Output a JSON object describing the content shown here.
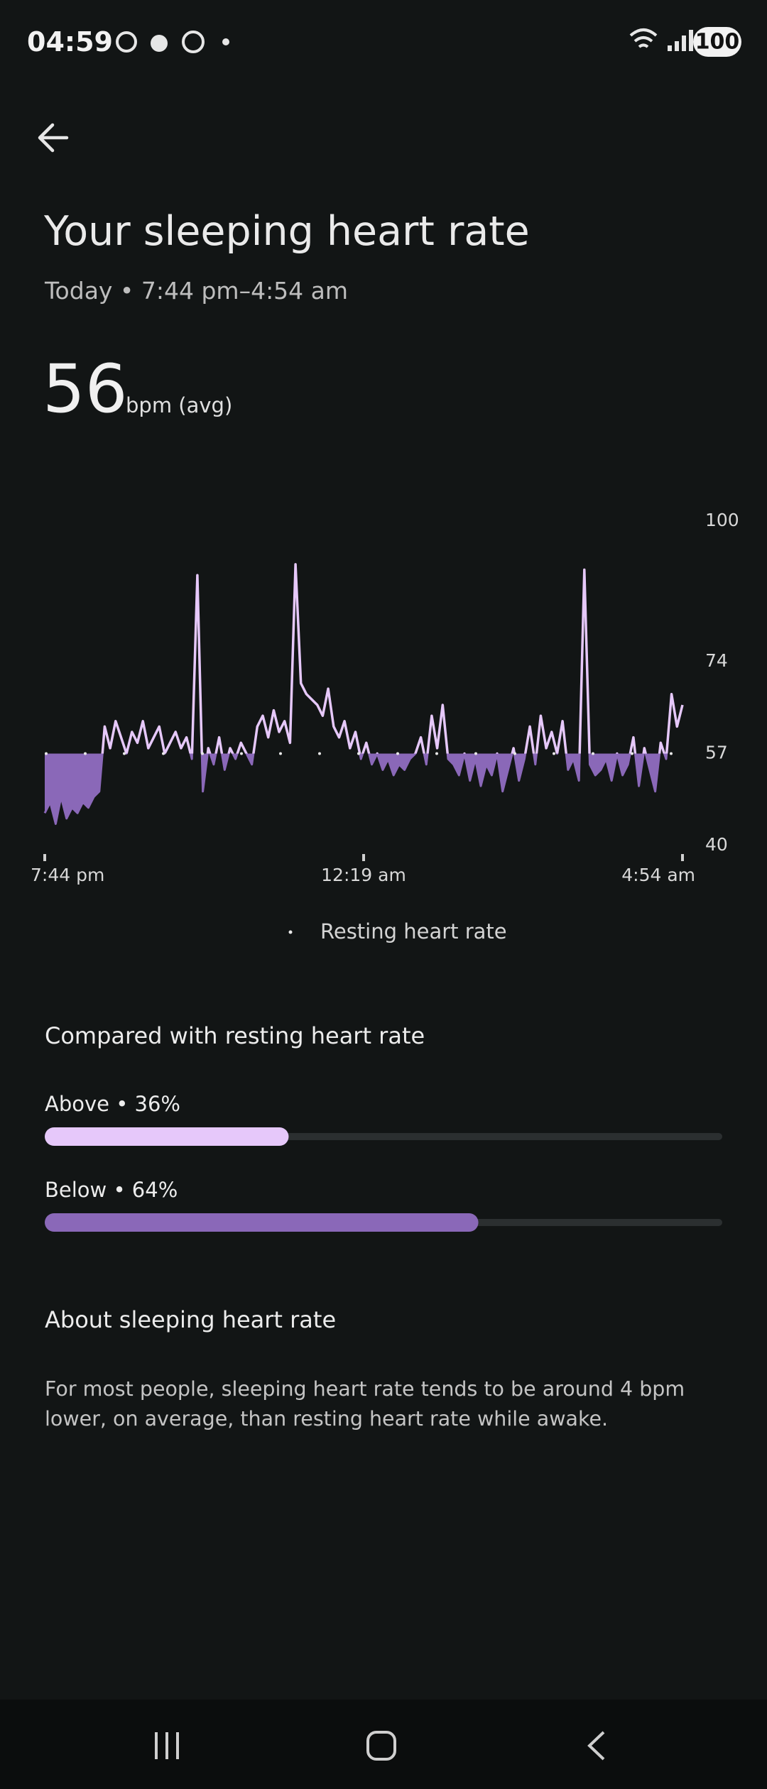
{
  "status_bar": {
    "time": "04:59",
    "battery": "100"
  },
  "header": {
    "title": "Your sleeping heart rate",
    "subtitle": "Today • 7:44 pm–4:54 am"
  },
  "summary": {
    "value": "56",
    "unit": "bpm (avg)"
  },
  "chart_data": {
    "type": "line",
    "x_labels": [
      "7:44 pm",
      "12:19 am",
      "4:54 am"
    ],
    "series": [
      {
        "name": "Heart rate",
        "color": "#e6c8fa",
        "below_color": "#8a68b8",
        "values": [
          46,
          48,
          44,
          49,
          45,
          47,
          46,
          48,
          47,
          49,
          50,
          62,
          58,
          63,
          60,
          57,
          61,
          59,
          63,
          58,
          60,
          62,
          57,
          59,
          61,
          58,
          60,
          56,
          90,
          50,
          58,
          55,
          60,
          54,
          58,
          56,
          59,
          57,
          55,
          62,
          64,
          60,
          65,
          61,
          63,
          59,
          92,
          70,
          68,
          67,
          66,
          64,
          69,
          62,
          60,
          63,
          58,
          61,
          56,
          59,
          55,
          57,
          54,
          56,
          53,
          55,
          54,
          56,
          57,
          60,
          55,
          64,
          58,
          66,
          56,
          55,
          53,
          57,
          52,
          56,
          51,
          55,
          53,
          57,
          50,
          54,
          58,
          52,
          56,
          62,
          55,
          64,
          58,
          61,
          57,
          63,
          54,
          56,
          52,
          91,
          55,
          53,
          54,
          56,
          52,
          57,
          53,
          55,
          60,
          51,
          58,
          54,
          50,
          59,
          56,
          68,
          62,
          66
        ]
      }
    ],
    "resting_heart_rate": 57,
    "legend": "Resting heart rate",
    "ylim": [
      40,
      100
    ],
    "yticks": [
      40,
      57,
      74,
      100
    ]
  },
  "comparison": {
    "title": "Compared with resting heart rate",
    "bars": [
      {
        "text": "Above • 36%",
        "value": 36,
        "color": "#e6c8fa"
      },
      {
        "text": "Below • 64%",
        "value": 64,
        "color": "#8a68b8"
      }
    ]
  },
  "about": {
    "title": "About sleeping heart rate",
    "text": "For most people, sleeping heart rate tends to be around 4 bpm lower, on average, than resting heart rate while awake."
  }
}
